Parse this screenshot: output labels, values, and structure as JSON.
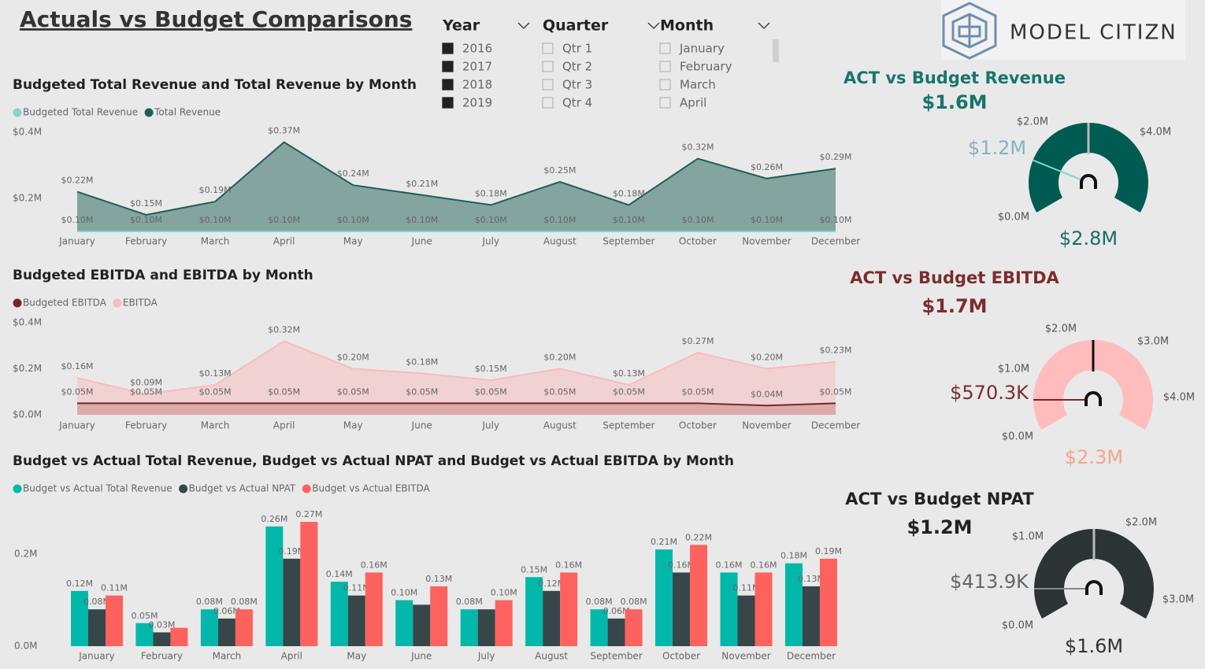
{
  "header": {
    "title": "Actuals vs Budget Comparisons",
    "logo_text": "MODEL CITIZN"
  },
  "slicers": [
    {
      "title": "Year",
      "items": [
        "2016",
        "2017",
        "2018",
        "2019"
      ],
      "checked": [
        true,
        true,
        true,
        true
      ]
    },
    {
      "title": "Quarter",
      "items": [
        "Qtr 1",
        "Qtr 2",
        "Qtr 3",
        "Qtr 4"
      ],
      "checked": [
        false,
        false,
        false,
        false
      ]
    },
    {
      "title": "Month",
      "items": [
        "January",
        "February",
        "March",
        "April"
      ],
      "checked": [
        false,
        false,
        false,
        false
      ]
    }
  ],
  "chart_data": [
    {
      "type": "area",
      "title": "Budgeted Total Revenue and Total Revenue by Month",
      "categories": [
        "January",
        "February",
        "March",
        "April",
        "May",
        "June",
        "July",
        "August",
        "September",
        "October",
        "November",
        "December"
      ],
      "series": [
        {
          "name": "Budgeted Total Revenue",
          "color": "#7fd6cc",
          "values": [
            0.1,
            0.1,
            0.1,
            0.1,
            0.1,
            0.1,
            0.1,
            0.1,
            0.1,
            0.1,
            0.1,
            0.1
          ],
          "value_labels": [
            "$0.10M",
            "$0.10M",
            "$0.10M",
            "$0.10M",
            "$0.10M",
            "$0.10M",
            "$0.10M",
            "$0.10M",
            "$0.10M",
            "$0.10M",
            "$0.10M",
            "$0.10M"
          ]
        },
        {
          "name": "Total Revenue",
          "color": "#1f5f58",
          "values": [
            0.22,
            0.15,
            0.19,
            0.37,
            0.24,
            0.21,
            0.18,
            0.25,
            0.18,
            0.32,
            0.26,
            0.29
          ],
          "value_labels": [
            "$0.22M",
            "$0.15M",
            "$0.19M",
            "$0.37M",
            "$0.24M",
            "$0.21M",
            "$0.18M",
            "$0.25M",
            "$0.18M",
            "$0.32M",
            "$0.26M",
            "$0.29M"
          ]
        }
      ],
      "ylim": [
        0.1,
        0.4
      ],
      "yticks": [
        {
          "value": 0.2,
          "label": "$0.2M"
        },
        {
          "value": 0.4,
          "label": "$0.4M"
        }
      ]
    },
    {
      "type": "area",
      "title": "Budgeted EBITDA and EBITDA by Month",
      "categories": [
        "January",
        "February",
        "March",
        "April",
        "May",
        "June",
        "July",
        "August",
        "September",
        "October",
        "November",
        "December"
      ],
      "series": [
        {
          "name": "Budgeted EBITDA",
          "color": "#7b2626",
          "values": [
            0.05,
            0.05,
            0.05,
            0.05,
            0.05,
            0.05,
            0.05,
            0.05,
            0.05,
            0.05,
            0.04,
            0.05
          ],
          "value_labels": [
            "$0.05M",
            "$0.05M",
            "$0.05M",
            "$0.05M",
            "$0.05M",
            "$0.05M",
            "$0.05M",
            "$0.05M",
            "$0.05M",
            "$0.05M",
            "$0.04M",
            "$0.05M"
          ]
        },
        {
          "name": "EBITDA",
          "color": "#f9bcbb",
          "values": [
            0.16,
            0.09,
            0.13,
            0.32,
            0.2,
            0.18,
            0.15,
            0.2,
            0.13,
            0.27,
            0.2,
            0.23
          ],
          "value_labels": [
            "$0.16M",
            "$0.09M",
            "$0.13M",
            "$0.32M",
            "$0.20M",
            "$0.18M",
            "$0.15M",
            "$0.20M",
            "$0.13M",
            "$0.27M",
            "$0.20M",
            "$0.23M"
          ]
        }
      ],
      "ylim": [
        0,
        0.4
      ],
      "yticks": [
        {
          "value": 0,
          "label": "$0.0M"
        },
        {
          "value": 0.2,
          "label": "$0.2M"
        },
        {
          "value": 0.4,
          "label": "$0.4M"
        }
      ]
    },
    {
      "type": "bar",
      "title": "Budget vs Actual Total Revenue, Budget vs Actual NPAT and Budget vs Actual EBITDA by Month",
      "categories": [
        "January",
        "February",
        "March",
        "April",
        "May",
        "June",
        "July",
        "August",
        "September",
        "October",
        "November",
        "December"
      ],
      "series": [
        {
          "name": "Budget vs Actual Total Revenue",
          "color": "#01b8aa",
          "values": [
            0.12,
            0.05,
            0.08,
            0.26,
            0.14,
            0.1,
            0.08,
            0.15,
            0.08,
            0.21,
            0.16,
            0.18
          ],
          "value_labels": [
            "0.12M",
            "0.05M",
            "0.08M",
            "0.26M",
            "0.14M",
            "0.10M",
            "0.08M",
            "0.15M",
            "0.08M",
            "0.21M",
            "0.16M",
            "0.18M"
          ]
        },
        {
          "name": "Budget vs Actual NPAT",
          "color": "#374649",
          "values": [
            0.08,
            0.03,
            0.06,
            0.19,
            0.11,
            0.09,
            0.08,
            0.12,
            0.06,
            0.16,
            0.11,
            0.13
          ],
          "value_labels": [
            "0.08M",
            "0.03M",
            "0.06M",
            "0.19M",
            "0.11M",
            null,
            null,
            "0.12M",
            "0.06M",
            "0.16M",
            "0.11M",
            "0.13M"
          ]
        },
        {
          "name": "Budget vs Actual EBITDA",
          "color": "#fd625e",
          "values": [
            0.11,
            0.04,
            0.08,
            0.27,
            0.16,
            0.13,
            0.1,
            0.16,
            0.08,
            0.22,
            0.16,
            0.19
          ],
          "value_labels": [
            "0.11M",
            null,
            "0.08M",
            "0.27M",
            "0.16M",
            "0.13M",
            "0.10M",
            "0.16M",
            "0.08M",
            "0.22M",
            "0.16M",
            "0.19M"
          ]
        }
      ],
      "ylim": [
        0,
        0.3
      ],
      "yticks": [
        {
          "value": 0,
          "label": "0.0M"
        },
        {
          "value": 0.2,
          "label": "0.2M"
        }
      ]
    }
  ],
  "gauges": [
    {
      "title": "ACT vs Budget Revenue",
      "callout": "$1.6M",
      "color": "#005b52",
      "ticks": [
        "$2.0M",
        "$4.0M",
        "$0.0M"
      ],
      "target_label": "$1.2M",
      "max_label": "$2.8M"
    },
    {
      "title": "ACT vs Budget EBITDA",
      "callout": "$1.7M",
      "color": "#ffbcbc",
      "ticks": [
        "$2.0M",
        "$3.0M",
        "$1.0M",
        "$4.0M",
        "$0.0M"
      ],
      "target_label": "$570.3K",
      "max_label": "$2.3M"
    },
    {
      "title": "ACT vs Budget NPAT",
      "callout": "$1.2M",
      "color": "#2d3436",
      "ticks": [
        "$2.0M",
        "$1.0M",
        "$3.0M",
        "$0.0M"
      ],
      "target_label": "$413.9K",
      "max_label": "$1.6M"
    }
  ]
}
